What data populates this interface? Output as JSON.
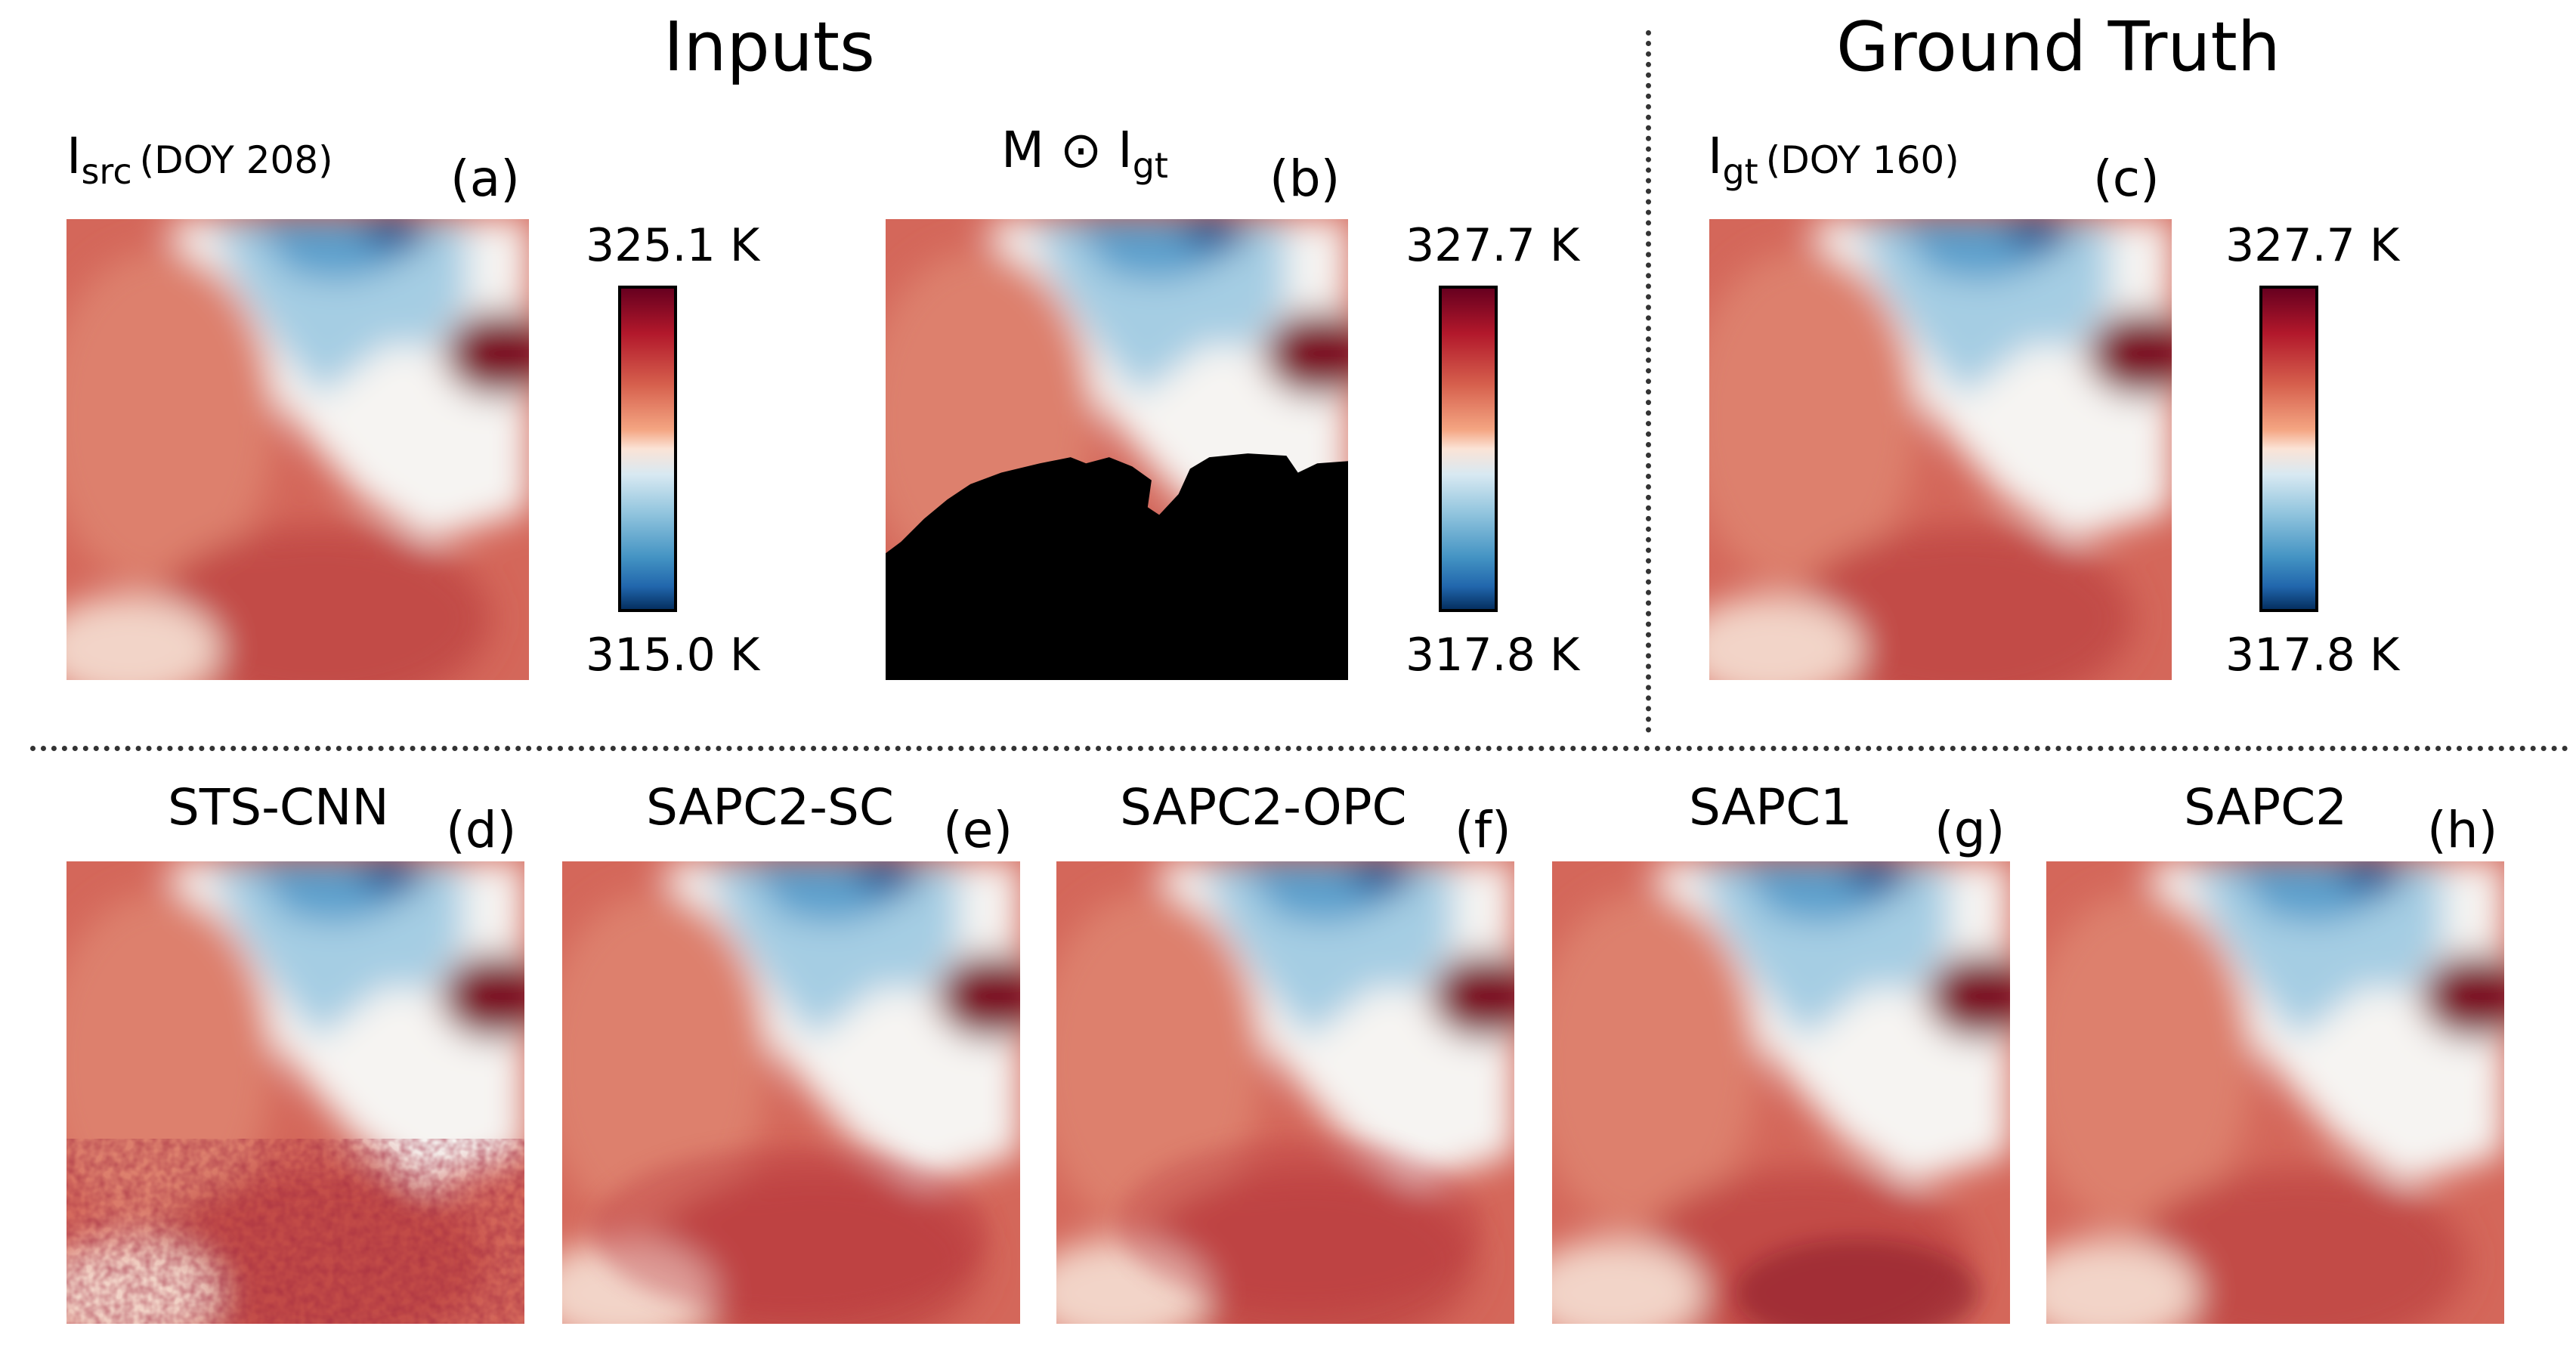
{
  "figure": {
    "inputs_title": "Inputs",
    "gt_title": "Ground Truth",
    "panels": {
      "a": {
        "symbol": "I",
        "subscript": "src",
        "doy": "(DOY 208)",
        "letter": "(a)"
      },
      "b": {
        "prefix": "M ⊙ ",
        "symbol": "I",
        "subscript": "gt",
        "letter": "(b)"
      },
      "c": {
        "symbol": "I",
        "subscript": "gt",
        "doy": "(DOY 160)",
        "letter": "(c)"
      },
      "d": {
        "label": "STS-CNN",
        "letter": "(d)"
      },
      "e": {
        "label": "SAPC2-SC",
        "letter": "(e)"
      },
      "f": {
        "label": "SAPC2-OPC",
        "letter": "(f)"
      },
      "g": {
        "label": "SAPC1",
        "letter": "(g)"
      },
      "h": {
        "label": "SAPC2",
        "letter": "(h)"
      }
    },
    "colorbars": {
      "a": {
        "max": "325.1 K",
        "min": "315.0 K"
      },
      "b": {
        "max": "327.7 K",
        "min": "317.8 K"
      },
      "c": {
        "max": "327.7 K",
        "min": "317.8 K"
      }
    },
    "colors": {
      "warm_dark": "#67001f",
      "warm": "#c13c3c",
      "neutral": "#f7f7f7",
      "cool": "#4393c3",
      "cool_dark": "#053061",
      "mask": "#000000"
    }
  }
}
